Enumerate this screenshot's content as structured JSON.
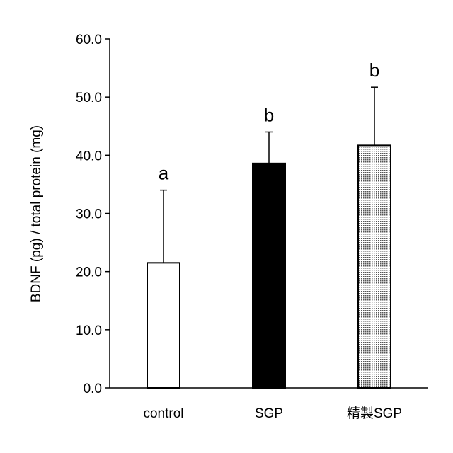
{
  "chart_data": {
    "type": "bar",
    "title": "",
    "xlabel": "",
    "ylabel": "BDNF (pg) / total protein (mg)",
    "ylim": [
      0,
      60
    ],
    "yticks": [
      0,
      10,
      20,
      30,
      40,
      50,
      60
    ],
    "ytick_labels": [
      "0.0",
      "10.0",
      "20.0",
      "30.0",
      "40.0",
      "50.0",
      "60.0"
    ],
    "categories": [
      "control",
      "SGP",
      "精製SGP"
    ],
    "values": [
      21.5,
      38.6,
      41.7
    ],
    "error_upper": [
      34.0,
      44.0,
      51.7
    ],
    "significance_labels": [
      "a",
      "b",
      "b"
    ],
    "bar_fills": [
      "#ffffff",
      "#000000",
      "dotted-pattern"
    ],
    "grid": false,
    "legend": "none"
  }
}
